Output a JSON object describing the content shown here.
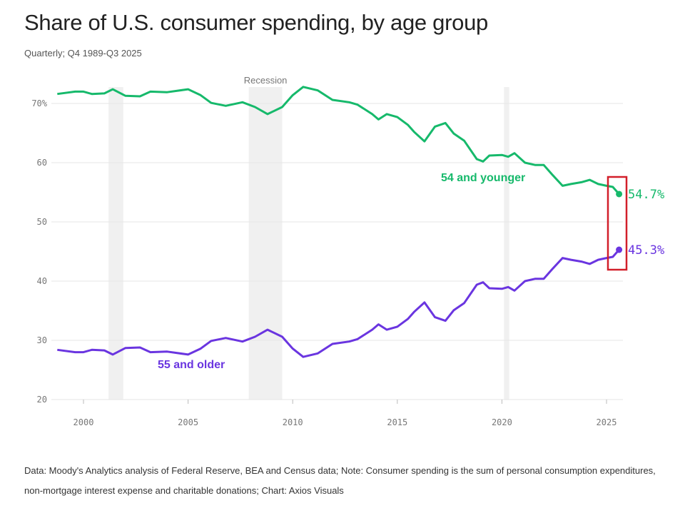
{
  "title": "Share of U.S. consumer spending, by age group",
  "subtitle": "Quarterly; Q4 1989-Q3 2025",
  "footer": "Data: Moody's Analytics analysis of Federal Reserve, BEA and Census data; Note: Consumer spending is the sum of personal consumption expenditures, non-mortgage interest expense and charitable donations; Chart: Axios Visuals",
  "chart_data": {
    "type": "line",
    "title": "Share of U.S. consumer spending, by age group",
    "xlim": [
      1998.75,
      2025.8
    ],
    "ylim": [
      20,
      73
    ],
    "x_ticks": [
      2000,
      2005,
      2010,
      2015,
      2020,
      2025
    ],
    "x_tick_labels": [
      "2000",
      "2005",
      "2010",
      "2015",
      "2020",
      "2025"
    ],
    "y_ticks": [
      20,
      30,
      40,
      50,
      60,
      70
    ],
    "y_tick_labels": [
      "20",
      "30",
      "40",
      "50",
      "60",
      "70%"
    ],
    "grid": true,
    "recession_label": "Recession",
    "recessions": [
      [
        2001.2,
        2001.9
      ],
      [
        2007.9,
        2009.5
      ],
      [
        2020.1,
        2020.35
      ]
    ],
    "x": [
      1998.75,
      1999.6,
      2000,
      2000.4,
      2001,
      2001.4,
      2002,
      2002.7,
      2003.2,
      2004,
      2005,
      2005.6,
      2006.1,
      2006.8,
      2007.6,
      2008.2,
      2008.8,
      2009.5,
      2010,
      2010.5,
      2011.2,
      2011.9,
      2012.7,
      2013.1,
      2013.8,
      2014.1,
      2014.5,
      2015,
      2015.5,
      2015.8,
      2016.3,
      2016.8,
      2017.3,
      2017.7,
      2018.2,
      2018.8,
      2019.1,
      2019.4,
      2020,
      2020.3,
      2020.6,
      2021.1,
      2021.6,
      2022,
      2022.4,
      2022.9,
      2023.3,
      2023.8,
      2024.2,
      2024.6,
      2025.0,
      2025.3,
      2025.6
    ],
    "series": [
      {
        "name": "54 and younger",
        "color": "#16b96b",
        "end_label": "54.7%",
        "values": [
          71.6,
          72.0,
          72.0,
          71.6,
          71.7,
          72.4,
          71.3,
          71.2,
          72.0,
          71.9,
          72.4,
          71.4,
          70.1,
          69.6,
          70.2,
          69.4,
          68.2,
          69.4,
          71.4,
          72.8,
          72.2,
          70.6,
          70.2,
          69.8,
          68.2,
          67.3,
          68.2,
          67.7,
          66.4,
          65.2,
          63.6,
          66.1,
          66.7,
          64.9,
          63.7,
          60.6,
          60.2,
          61.2,
          61.3,
          61.0,
          61.6,
          60.0,
          59.6,
          59.6,
          58.0,
          56.1,
          56.4,
          56.7,
          57.1,
          56.4,
          56.1,
          55.9,
          54.7
        ]
      },
      {
        "name": "55 and older",
        "color": "#6a35e0",
        "end_label": "45.3%",
        "values": [
          28.4,
          28.0,
          28.0,
          28.4,
          28.3,
          27.6,
          28.7,
          28.8,
          28.0,
          28.1,
          27.6,
          28.6,
          29.9,
          30.4,
          29.8,
          30.6,
          31.8,
          30.6,
          28.6,
          27.2,
          27.8,
          29.4,
          29.8,
          30.2,
          31.8,
          32.7,
          31.8,
          32.3,
          33.6,
          34.8,
          36.4,
          33.9,
          33.3,
          35.1,
          36.3,
          39.4,
          39.8,
          38.8,
          38.7,
          39.0,
          38.4,
          40.0,
          40.4,
          40.4,
          42.0,
          43.9,
          43.6,
          43.3,
          42.9,
          43.6,
          43.9,
          44.1,
          45.3
        ]
      }
    ],
    "highlight": "latest values box",
    "highlight_color": "#d21f2a"
  }
}
